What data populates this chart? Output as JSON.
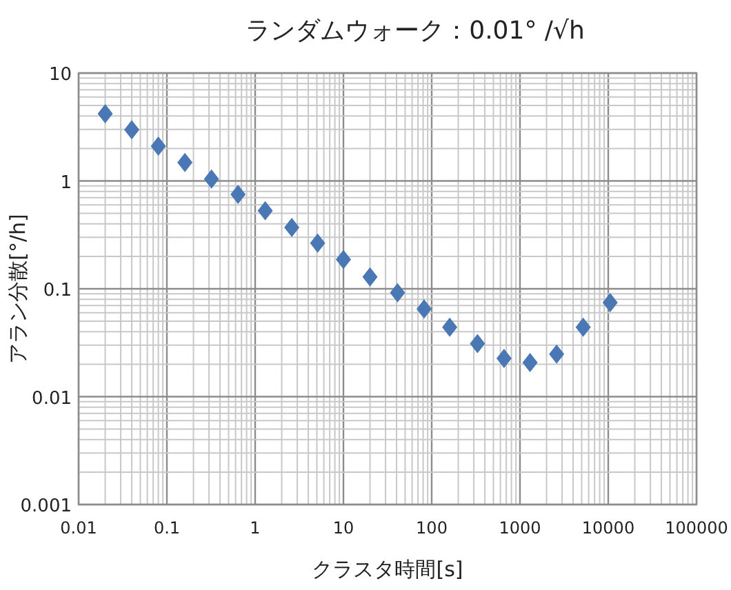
{
  "chart_data": {
    "type": "scatter",
    "title": "ランダムウォーク：0.01° /√h",
    "xlabel": "クラスタ時間[s]",
    "ylabel": "アラン分散[°/h]",
    "x": [
      0.02,
      0.04,
      0.08,
      0.16,
      0.32,
      0.64,
      1.3,
      2.6,
      5.1,
      10,
      20,
      41,
      82,
      160,
      330,
      660,
      1300,
      2600,
      5200,
      10500
    ],
    "series": [
      {
        "color": "#4a78b4",
        "values": [
          4.2,
          2.98,
          2.1,
          1.48,
          1.04,
          0.75,
          0.53,
          0.37,
          0.265,
          0.187,
          0.129,
          0.092,
          0.065,
          0.044,
          0.031,
          0.0226,
          0.0207,
          0.0248,
          0.044,
          0.0745
        ]
      }
    ],
    "log": "xy",
    "xlim": [
      0.01,
      100000
    ],
    "xticks": [
      0.01,
      0.1,
      1,
      10,
      100,
      1000,
      10000,
      100000
    ],
    "ylim": [
      0.001,
      10
    ],
    "yticks": [
      0.001,
      0.01,
      0.1,
      1,
      10
    ],
    "grid": true,
    "marker": "diamond"
  }
}
